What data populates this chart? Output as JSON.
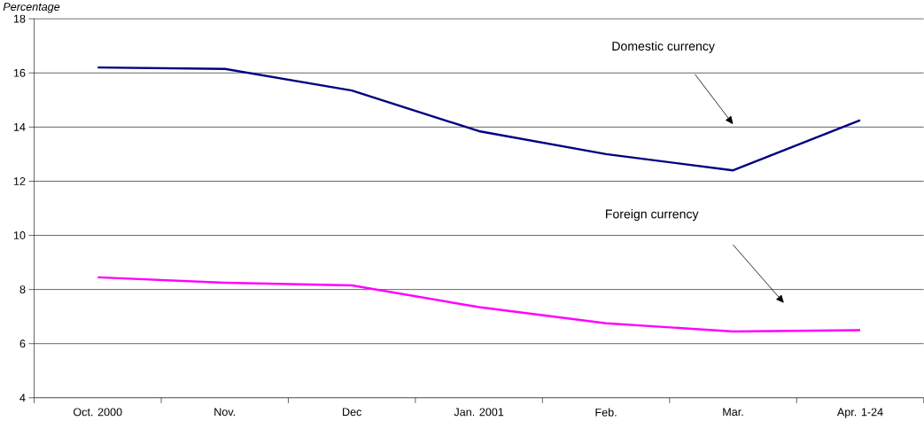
{
  "chart_data": {
    "type": "line",
    "ylabel": "Percentage",
    "categories": [
      "Oct. 2000",
      "Nov.",
      "Dec",
      "Jan. 2001",
      "Feb.",
      "Mar.",
      "Apr. 1-24"
    ],
    "series": [
      {
        "color": "#000080",
        "values": [
          16.2,
          16.15,
          15.35,
          13.85,
          13.0,
          12.4,
          14.25
        ]
      },
      {
        "color": "#ff00ff",
        "values": [
          8.45,
          8.25,
          8.15,
          7.35,
          6.75,
          6.45,
          6.5
        ]
      }
    ],
    "annotations": [
      "Domestic currency",
      "Foreign currency"
    ],
    "ylim": [
      4,
      18
    ],
    "yticks": [
      4,
      6,
      8,
      10,
      12,
      14,
      16,
      18
    ],
    "grid": "y",
    "legend": false,
    "marker": "none",
    "line_style": "solid"
  }
}
